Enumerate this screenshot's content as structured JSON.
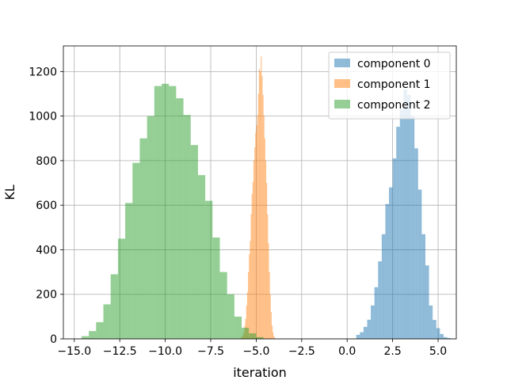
{
  "chart_data": {
    "type": "bar",
    "title": "",
    "xlabel": "iteration",
    "ylabel": "KL",
    "xlim": [
      -15.6,
      6.0
    ],
    "ylim": [
      0,
      1315
    ],
    "x_ticks": [
      -15.0,
      -12.5,
      -10.0,
      -7.5,
      -5.0,
      -2.5,
      0.0,
      2.5,
      5.0
    ],
    "x_tick_labels": [
      "−15.0",
      "−12.5",
      "−10.0",
      "−7.5",
      "−5.0",
      "−2.5",
      "0.0",
      "2.5",
      "5.0"
    ],
    "y_ticks": [
      0,
      200,
      400,
      600,
      800,
      1000,
      1200
    ],
    "y_tick_labels": [
      "0",
      "200",
      "400",
      "600",
      "800",
      "1000",
      "1200"
    ],
    "grid": true,
    "legend_position": "top-right",
    "series": [
      {
        "name": "component 0",
        "color": "#1f77b4",
        "opacity": 0.5,
        "bin_start": 0.5,
        "bin_width": 0.2,
        "values": [
          18,
          30,
          54,
          86,
          150,
          232,
          348,
          470,
          605,
          680,
          810,
          952,
          1030,
          1120,
          1095,
          1000,
          855,
          670,
          470,
          330,
          150,
          85,
          48,
          22,
          8,
          4
        ]
      },
      {
        "name": "component 1",
        "color": "#ff7f0e",
        "opacity": 0.5,
        "bin_start": -5.9,
        "bin_width": 0.05,
        "values": [
          3,
          6,
          10,
          18,
          30,
          60,
          90,
          150,
          210,
          300,
          380,
          440,
          560,
          650,
          705,
          800,
          860,
          925,
          960,
          1005,
          1100,
          1212,
          1200,
          1268,
          1180,
          1095,
          1002,
          900,
          800,
          700,
          560,
          430,
          300,
          200,
          120,
          60,
          30,
          12,
          5
        ]
      },
      {
        "name": "component 2",
        "color": "#2ca02c",
        "opacity": 0.5,
        "bin_start": -14.6,
        "bin_width": 0.4,
        "values": [
          12,
          35,
          75,
          155,
          290,
          450,
          610,
          790,
          900,
          1000,
          1135,
          1145,
          1135,
          1080,
          1005,
          870,
          735,
          620,
          455,
          300,
          200,
          100,
          50,
          25,
          8
        ]
      }
    ]
  }
}
